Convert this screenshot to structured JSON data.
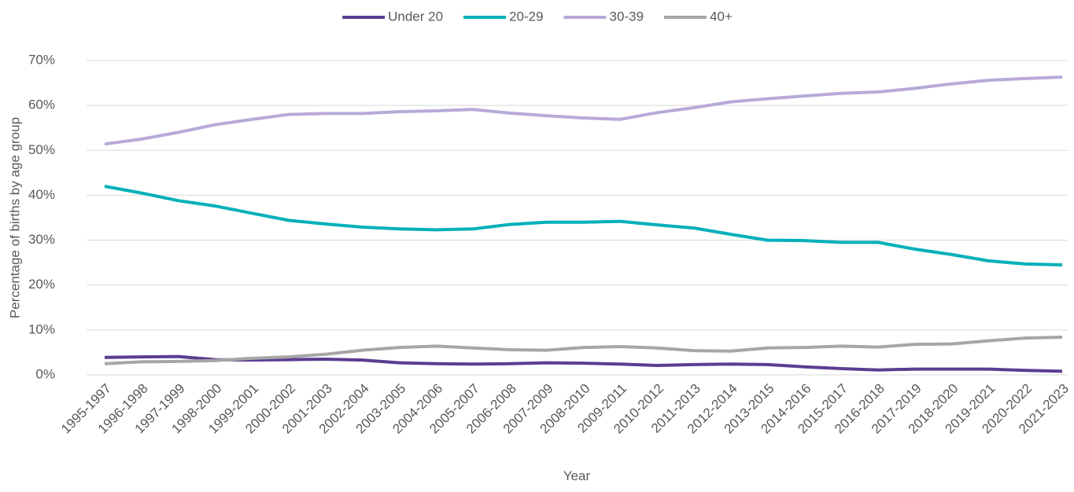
{
  "chart_data": {
    "type": "line",
    "y_label": "Percentage of births by age group",
    "x_label": "Year",
    "categories": [
      "1995-1997",
      "1996-1998",
      "1997-1999",
      "1998-2000",
      "1999-2001",
      "2000-2002",
      "2001-2003",
      "2002-2004",
      "2003-2005",
      "2004-2006",
      "2005-2007",
      "2006-2008",
      "2007-2009",
      "2008-2010",
      "2009-2011",
      "2010-2012",
      "2011-2013",
      "2012-2014",
      "2013-2015",
      "2014-2016",
      "2015-2017",
      "2016-2018",
      "2017-2019",
      "2018-2020",
      "2019-2021",
      "2020-2022",
      "2021-2023"
    ],
    "series": [
      {
        "name": "Under 20",
        "color": "#5c3d91",
        "values": [
          3.9,
          4.0,
          4.1,
          3.4,
          3.3,
          3.4,
          3.5,
          3.3,
          2.7,
          2.5,
          2.4,
          2.5,
          2.7,
          2.6,
          2.4,
          2.1,
          2.3,
          2.4,
          2.3,
          1.8,
          1.4,
          1.1,
          1.3,
          1.3,
          1.3,
          1.0,
          0.8
        ]
      },
      {
        "name": "20-29",
        "color": "#00b0b9",
        "values": [
          42.0,
          40.5,
          38.8,
          37.6,
          36.0,
          34.4,
          33.6,
          32.9,
          32.5,
          32.3,
          32.5,
          33.5,
          34.0,
          34.0,
          34.2,
          33.4,
          32.7,
          31.3,
          30.0,
          29.9,
          29.5,
          29.5,
          28.0,
          26.8,
          25.4,
          24.7,
          24.5
        ]
      },
      {
        "name": "30-39",
        "color": "#b8a9d9",
        "values": [
          51.4,
          52.5,
          54.0,
          55.7,
          56.9,
          58.0,
          58.2,
          58.2,
          58.6,
          58.8,
          59.1,
          58.3,
          57.7,
          57.2,
          56.9,
          58.4,
          59.5,
          60.8,
          61.5,
          62.1,
          62.7,
          63.0,
          63.8,
          64.8,
          65.6,
          66.0,
          66.3
        ]
      },
      {
        "name": "40+",
        "color": "#a6a6a6",
        "values": [
          2.5,
          2.9,
          3.0,
          3.2,
          3.7,
          4.0,
          4.6,
          5.5,
          6.1,
          6.4,
          6.0,
          5.6,
          5.5,
          6.1,
          6.3,
          6.0,
          5.4,
          5.3,
          6.0,
          6.1,
          6.4,
          6.2,
          6.8,
          6.9,
          7.6,
          8.2,
          8.4
        ]
      }
    ],
    "ylim": [
      0,
      70
    ],
    "yticks": [
      {
        "value": 0,
        "label": "0%"
      },
      {
        "value": 10,
        "label": "10%"
      },
      {
        "value": 20,
        "label": "20%"
      },
      {
        "value": 30,
        "label": "30%"
      },
      {
        "value": 40,
        "label": "40%"
      },
      {
        "value": 50,
        "label": "50%"
      },
      {
        "value": 60,
        "label": "60%"
      },
      {
        "value": 70,
        "label": "70%"
      }
    ],
    "grid": true,
    "legend": "top"
  }
}
